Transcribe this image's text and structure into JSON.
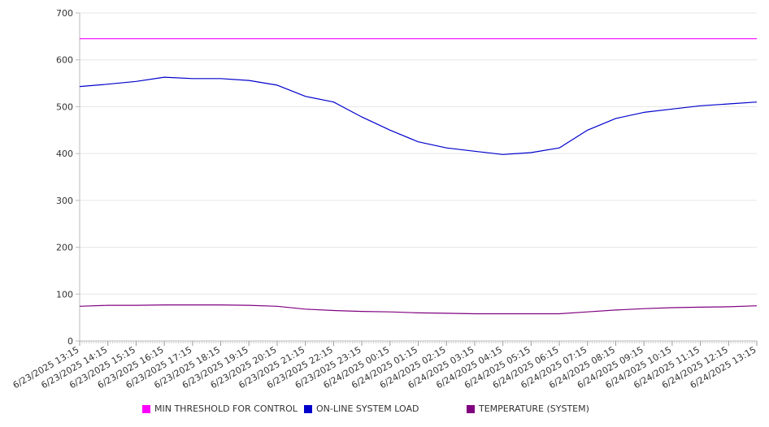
{
  "chart_data": {
    "type": "line",
    "title": "",
    "xlabel": "",
    "ylabel": "",
    "ylim": [
      0,
      700
    ],
    "yticks": [
      "0",
      "100",
      "200",
      "300",
      "400",
      "500",
      "600",
      "700"
    ],
    "grid": true,
    "legend_position": "bottom",
    "x": [
      "6/23/2025 13:15",
      "6/23/2025 14:15",
      "6/23/2025 15:15",
      "6/23/2025 16:15",
      "6/23/2025 17:15",
      "6/23/2025 18:15",
      "6/23/2025 19:15",
      "6/23/2025 20:15",
      "6/23/2025 21:15",
      "6/23/2025 22:15",
      "6/23/2025 23:15",
      "6/24/2025 00:15",
      "6/24/2025 01:15",
      "6/24/2025 02:15",
      "6/24/2025 03:15",
      "6/24/2025 04:15",
      "6/24/2025 05:15",
      "6/24/2025 06:15",
      "6/24/2025 07:15",
      "6/24/2025 08:15",
      "6/24/2025 09:15",
      "6/24/2025 10:15",
      "6/24/2025 11:15",
      "6/24/2025 12:15",
      "6/24/2025 13:15"
    ],
    "series": [
      {
        "name": "MIN THRESHOLD FOR CONTROL",
        "color": "#ff00ff",
        "values": [
          645,
          645,
          645,
          645,
          645,
          645,
          645,
          645,
          645,
          645,
          645,
          645,
          645,
          645,
          645,
          645,
          645,
          645,
          645,
          645,
          645,
          645,
          645,
          645,
          645
        ]
      },
      {
        "name": "ON-LINE SYSTEM LOAD",
        "color": "#0000cc",
        "values": [
          543,
          548,
          554,
          563,
          560,
          560,
          556,
          546,
          522,
          510,
          478,
          450,
          425,
          412,
          405,
          398,
          402,
          412,
          450,
          475,
          488,
          495,
          502,
          506,
          510
        ]
      },
      {
        "name": "TEMPERATURE (SYSTEM)",
        "color": "#800080",
        "values": [
          74,
          76,
          76,
          77,
          77,
          77,
          76,
          74,
          68,
          65,
          63,
          62,
          60,
          59,
          58,
          58,
          58,
          58,
          62,
          66,
          69,
          71,
          72,
          73,
          75
        ]
      }
    ]
  }
}
